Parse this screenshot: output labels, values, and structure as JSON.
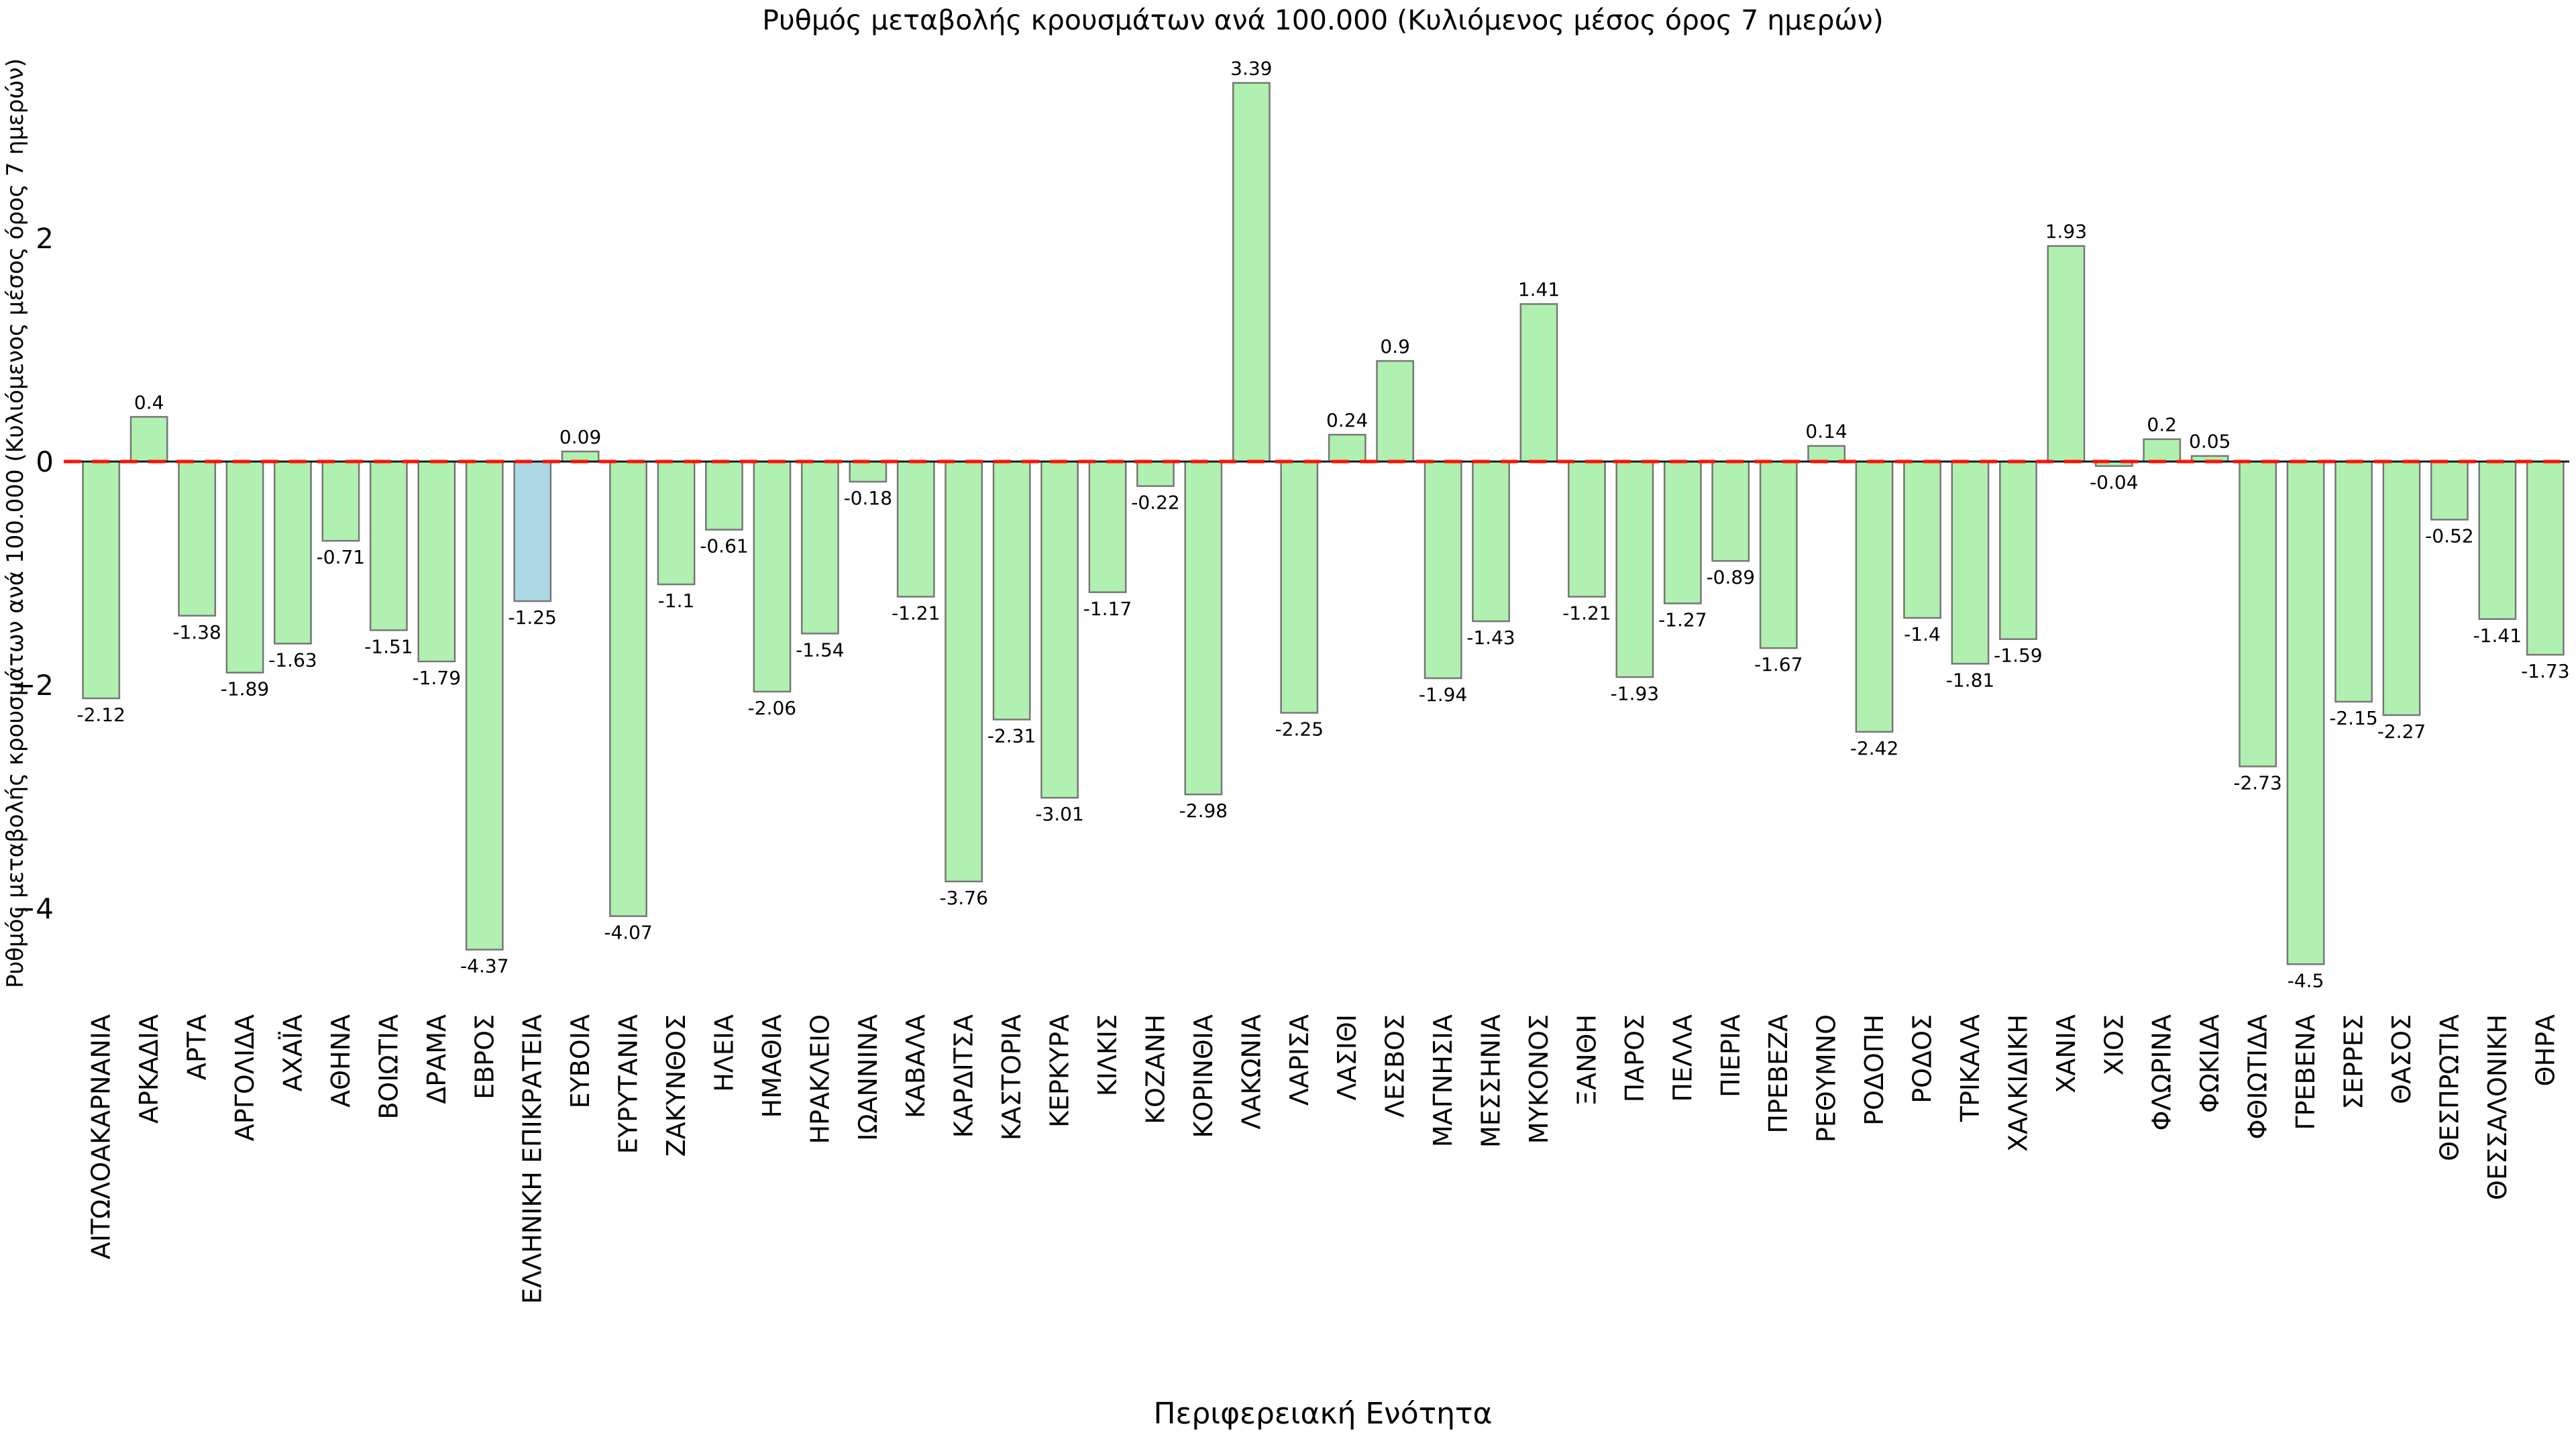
{
  "page": {
    "background": "#ffffff"
  },
  "chart_data": {
    "type": "bar",
    "title": "Ρυθμός μεταβολής κρουσμάτων ανά 100.000 (Κυλιόμενος μέσος όρος 7 ημερών)",
    "xlabel": "Περιφερειακή Ενότητα",
    "ylabel": "Ρυθμός μεταβολής κρουσμάτων ανά 100.000 (Κυλιόμενος μέσος όρος 7 ημερών)",
    "ylim": [
      -4.89,
      3.78
    ],
    "ytick_values": [
      2,
      0,
      -2,
      -4
    ],
    "ytick_labels": [
      "2",
      "0",
      "−2",
      "−4"
    ],
    "grid": false,
    "legend": null,
    "zero_line": {
      "value": 0,
      "style": "dashed",
      "color": "#ff1100",
      "underlay_color": "#1a1a1a"
    },
    "bar_fill": "#b0f0b0",
    "bar_stroke": "#777777",
    "highlight_category": "ΕΛΛΗΝΙΚΗ ΕΠΙΚΡΑΤΕΙΑ",
    "highlight_fill": "#add8e6",
    "categories": [
      "ΑΙΤΩΛΟΑΚΑΡΝΑΝΙΑ",
      "ΑΡΚΑΔΙΑ",
      "ΑΡΤΑ",
      "ΑΡΓΟΛΙΔΑ",
      "ΑΧΑΪΑ",
      "ΑΘΗΝΑ",
      "ΒΟΙΩΤΙΑ",
      "ΔΡΑΜΑ",
      "ΕΒΡΟΣ",
      "ΕΛΛΗΝΙΚΗ ΕΠΙΚΡΑΤΕΙΑ",
      "ΕΥΒΟΙΑ",
      "ΕΥΡΥΤΑΝΙΑ",
      "ΖΑΚΥΝΘΟΣ",
      "ΗΛΕΙΑ",
      "ΗΜΑΘΙΑ",
      "ΗΡΑΚΛΕΙΟ",
      "ΙΩΑΝΝΙΝΑ",
      "ΚΑΒΑΛΑ",
      "ΚΑΡΔΙΤΣΑ",
      "ΚΑΣΤΟΡΙΑ",
      "ΚΕΡΚΥΡΑ",
      "ΚΙΛΚΙΣ",
      "ΚΟΖΑΝΗ",
      "ΚΟΡΙΝΘΙΑ",
      "ΛΑΚΩΝΙΑ",
      "ΛΑΡΙΣΑ",
      "ΛΑΣΙΘΙ",
      "ΛΕΣΒΟΣ",
      "ΜΑΓΝΗΣΙΑ",
      "ΜΕΣΣΗΝΙΑ",
      "ΜΥΚΟΝΟΣ",
      "ΞΑΝΘΗ",
      "ΠΑΡΟΣ",
      "ΠΕΛΛΑ",
      "ΠΙΕΡΙΑ",
      "ΠΡΕΒΕΖΑ",
      "ΡΕΘΥΜΝΟ",
      "ΡΟΔΟΠΗ",
      "ΡΟΔΟΣ",
      "ΤΡΙΚΑΛΑ",
      "ΧΑΛΚΙΔΙΚΗ",
      "ΧΑΝΙΑ",
      "ΧΙΟΣ",
      "ΦΛΩΡΙΝΑ",
      "ΦΩΚΙΔΑ",
      "ΦΘΙΩΤΙΔΑ",
      "ΓΡΕΒΕΝΑ",
      "ΣΕΡΡΕΣ",
      "ΘΑΣΟΣ",
      "ΘΕΣΠΡΩΤΙΑ",
      "ΘΕΣΣΑΛΟΝΙΚΗ",
      "ΘΗΡΑ"
    ],
    "values": [
      -2.12,
      0.4,
      -1.38,
      -1.89,
      -1.63,
      -0.71,
      -1.51,
      -1.79,
      -4.37,
      -1.25,
      0.09,
      -4.07,
      -1.1,
      -0.61,
      -2.06,
      -1.54,
      -0.18,
      -1.21,
      -3.76,
      -2.31,
      -3.01,
      -1.17,
      -0.22,
      -2.98,
      3.39,
      -2.25,
      0.24,
      0.9,
      -1.94,
      -1.43,
      1.41,
      -1.21,
      -1.93,
      -1.27,
      -0.89,
      -1.67,
      0.14,
      -2.42,
      -1.4,
      -1.81,
      -1.59,
      1.93,
      -0.04,
      0.2,
      0.05,
      -2.73,
      -4.5,
      -2.15,
      -2.27,
      -0.52,
      -1.41,
      -1.73
    ]
  }
}
